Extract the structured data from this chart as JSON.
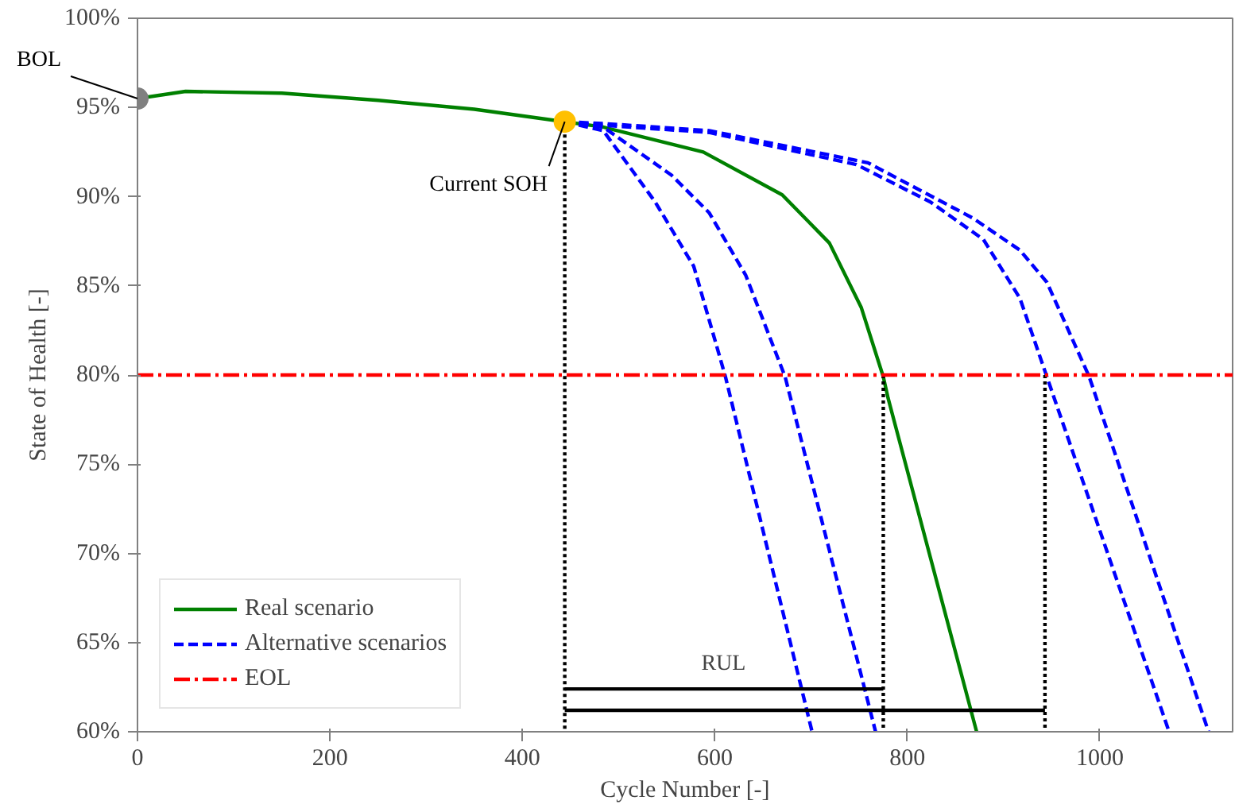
{
  "chart_data": {
    "type": "line",
    "xlabel": "Cycle Number [-]",
    "ylabel": "State of Health [-]",
    "xlim": [
      0,
      1138
    ],
    "ylim": [
      60,
      100
    ],
    "xticks": [
      0,
      200,
      400,
      600,
      800,
      1000
    ],
    "yticks": [
      {
        "value": 60,
        "label": "60%"
      },
      {
        "value": 65,
        "label": "65%"
      },
      {
        "value": 70,
        "label": "70%"
      },
      {
        "value": 75,
        "label": "75%"
      },
      {
        "value": 80,
        "label": "80%"
      },
      {
        "value": 85,
        "label": "85%"
      },
      {
        "value": 90,
        "label": "90%"
      },
      {
        "value": 95,
        "label": "95%"
      },
      {
        "value": 100,
        "label": "100%"
      }
    ],
    "grid": false,
    "legend": "bottom left",
    "series": [
      {
        "name": "Real scenario",
        "color": "#008000",
        "line_style": "solid",
        "x": [
          0,
          50,
          150,
          250,
          350,
          444,
          484,
          588,
          670,
          719,
          752,
          775,
          780,
          872
        ],
        "values": [
          95.5,
          95.9,
          95.8,
          95.4,
          94.9,
          94.2,
          93.9,
          92.5,
          90.1,
          87.4,
          83.8,
          79.9,
          78.7,
          60
        ]
      },
      {
        "name": "Alternative scenarios",
        "color": "#0000ff",
        "line_style": "dashed",
        "x": [
          444,
          484,
          538,
          578,
          611,
          701
        ],
        "values": [
          94.2,
          93.7,
          89.7,
          86.1,
          79.9,
          60
        ]
      },
      {
        "color": "#0000ff",
        "line_style": "dashed",
        "x": [
          444,
          484,
          555,
          594,
          632,
          673,
          767
        ],
        "values": [
          94.2,
          93.9,
          91.2,
          89.1,
          85.6,
          79.9,
          60
        ]
      },
      {
        "color": "#0000ff",
        "line_style": "dashed",
        "x": [
          444,
          484,
          594,
          747,
          824,
          879,
          917,
          945,
          1072
        ],
        "values": [
          94.2,
          94.0,
          93.6,
          91.8,
          89.7,
          87.6,
          84.3,
          79.9,
          60
        ]
      },
      {
        "color": "#0000ff",
        "line_style": "dashed",
        "x": [
          444,
          484,
          594,
          759,
          868,
          917,
          945,
          989,
          1113
        ],
        "values": [
          94.2,
          94.1,
          93.7,
          91.9,
          88.8,
          87.0,
          85.2,
          79.9,
          60
        ]
      },
      {
        "color": "#000000",
        "line_style": "dotted",
        "x": [
          444,
          444
        ],
        "values": [
          94.2,
          60
        ]
      },
      {
        "color": "#000000",
        "line_style": "dotted",
        "x": [
          775,
          775
        ],
        "values": [
          80,
          60
        ]
      },
      {
        "color": "#000000",
        "line_style": "dotted",
        "x": [
          943,
          943
        ],
        "values": [
          80,
          60
        ]
      },
      {
        "color": "#000000",
        "line_style": "solid",
        "x": [
          444,
          775
        ],
        "values": [
          62.4,
          62.4
        ]
      },
      {
        "color": "#000000",
        "line_style": "solid",
        "x": [
          444,
          943
        ],
        "values": [
          61.2,
          61.2
        ]
      },
      {
        "type": "scatter",
        "marker": "circle",
        "color": "#808080",
        "x": [
          0
        ],
        "values": [
          95.5
        ]
      },
      {
        "type": "scatter",
        "marker": "circle",
        "color": "#ffc000",
        "x": [
          444
        ],
        "values": [
          94.2
        ]
      }
    ],
    "ref_lines": [
      {
        "axis": "y",
        "value": 80,
        "label": "EOL",
        "color": "#ff0000",
        "line_style": "dashdot"
      }
    ],
    "annotations": [
      {
        "text": "BOL",
        "x": 0,
        "y": 95.5
      },
      {
        "text": "Current SOH",
        "x": 444,
        "y": 94.2
      },
      {
        "text": "RUL",
        "x": 609,
        "y": 62.4
      }
    ]
  }
}
